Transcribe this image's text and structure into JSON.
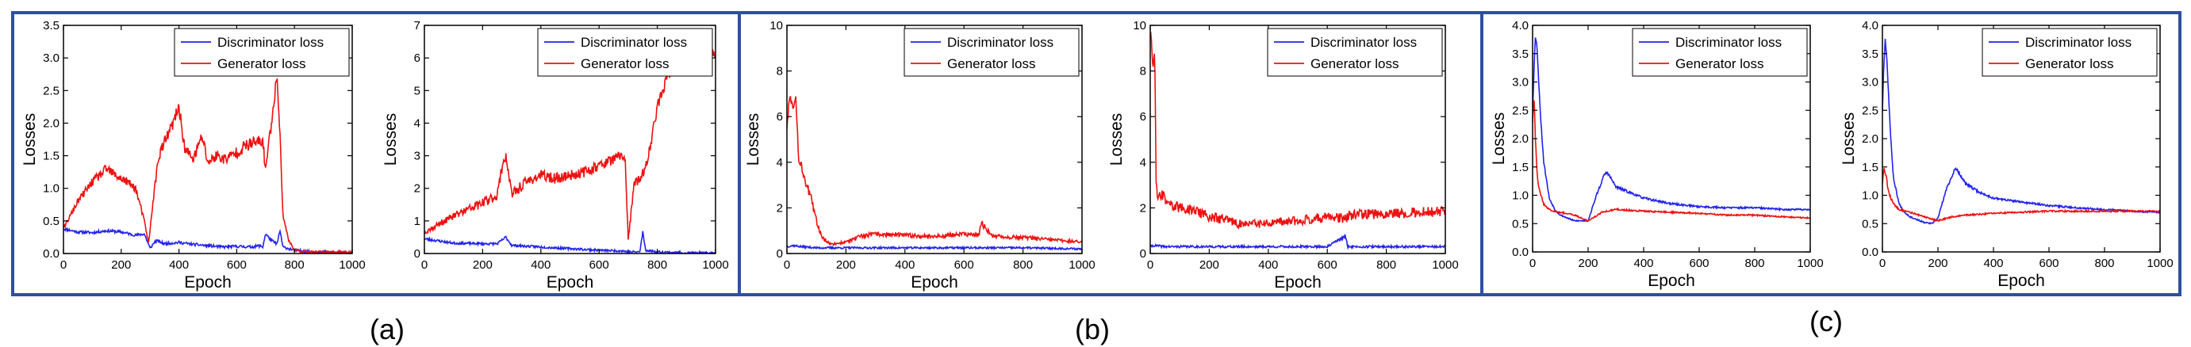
{
  "figure": {
    "colors": {
      "border": "#2f4f9f",
      "discriminator": "#2222ee",
      "generator": "#ee1111",
      "axis": "#000000"
    },
    "panel_labels": [
      "(a)",
      "(b)",
      "(c)"
    ]
  },
  "chart_data": [
    {
      "type": "line",
      "panel": "(a)",
      "title": "",
      "xlabel": "Epoch",
      "ylabel": "Losses",
      "xlim": [
        0,
        1000
      ],
      "ylim": [
        0,
        3.5
      ],
      "xticks": [
        0,
        200,
        400,
        600,
        800,
        1000
      ],
      "yticks": [
        0.0,
        0.5,
        1.0,
        1.5,
        2.0,
        2.5,
        3.0,
        3.5
      ],
      "ytick_labels": [
        "0.0",
        "0.5",
        "1.0",
        "1.5",
        "2.0",
        "2.5",
        "3.0",
        "3.5"
      ],
      "legend": "top-right",
      "noise": 0.06,
      "seed": 11,
      "series": [
        {
          "name": "Discriminator loss",
          "color": "#2222ee",
          "x": [
            0,
            50,
            100,
            150,
            200,
            250,
            280,
            300,
            320,
            350,
            400,
            450,
            500,
            550,
            600,
            650,
            680,
            690,
            700,
            720,
            740,
            750,
            760,
            800,
            850,
            900,
            1000
          ],
          "y": [
            0.38,
            0.33,
            0.32,
            0.35,
            0.33,
            0.28,
            0.3,
            0.08,
            0.2,
            0.15,
            0.17,
            0.14,
            0.12,
            0.1,
            0.11,
            0.1,
            0.12,
            0.1,
            0.3,
            0.2,
            0.15,
            0.35,
            0.1,
            0.05,
            0.03,
            0.02,
            0.01
          ]
        },
        {
          "name": "Generator loss",
          "color": "#ee1111",
          "x": [
            0,
            50,
            100,
            150,
            180,
            220,
            250,
            280,
            295,
            310,
            330,
            350,
            380,
            400,
            420,
            450,
            480,
            500,
            530,
            560,
            600,
            630,
            660,
            690,
            700,
            720,
            740,
            750,
            760,
            780,
            800,
            850,
            900,
            1000
          ],
          "y": [
            0.38,
            0.8,
            1.1,
            1.3,
            1.2,
            1.1,
            1.0,
            0.5,
            0.15,
            0.8,
            1.5,
            1.7,
            2.0,
            2.25,
            1.6,
            1.45,
            1.8,
            1.4,
            1.5,
            1.45,
            1.55,
            1.65,
            1.7,
            1.72,
            1.3,
            2.0,
            2.75,
            1.8,
            0.6,
            0.2,
            0.05,
            0.02,
            0.02,
            0.02
          ]
        }
      ]
    },
    {
      "type": "line",
      "panel": "(a)",
      "title": "",
      "xlabel": "Epoch",
      "ylabel": "Losses",
      "xlim": [
        0,
        1000
      ],
      "ylim": [
        0,
        7
      ],
      "xticks": [
        0,
        200,
        400,
        600,
        800,
        1000
      ],
      "yticks": [
        0,
        1,
        2,
        3,
        4,
        5,
        6,
        7
      ],
      "ytick_labels": [
        "0",
        "1",
        "2",
        "3",
        "4",
        "5",
        "6",
        "7"
      ],
      "legend": "top-right",
      "noise": 0.1,
      "seed": 23,
      "series": [
        {
          "name": "Discriminator loss",
          "color": "#2222ee",
          "x": [
            0,
            100,
            200,
            250,
            280,
            300,
            400,
            500,
            600,
            680,
            700,
            740,
            750,
            760,
            800,
            900,
            1000
          ],
          "y": [
            0.45,
            0.32,
            0.3,
            0.3,
            0.5,
            0.25,
            0.2,
            0.15,
            0.1,
            0.08,
            0.05,
            0.05,
            0.65,
            0.1,
            0.05,
            0.02,
            0.01
          ]
        },
        {
          "name": "Generator loss",
          "color": "#ee1111",
          "x": [
            0,
            100,
            200,
            250,
            270,
            280,
            300,
            350,
            400,
            450,
            500,
            550,
            600,
            650,
            680,
            690,
            700,
            720,
            740,
            760,
            780,
            800,
            830,
            850,
            900,
            950,
            980,
            1000
          ],
          "y": [
            0.65,
            1.15,
            1.55,
            1.8,
            2.8,
            3.0,
            1.8,
            2.2,
            2.4,
            2.3,
            2.4,
            2.5,
            2.7,
            2.9,
            3.0,
            2.9,
            0.4,
            2.1,
            2.3,
            2.6,
            3.5,
            4.5,
            5.3,
            5.6,
            5.9,
            6.0,
            6.1,
            6.15
          ]
        }
      ]
    },
    {
      "type": "line",
      "panel": "(b)",
      "title": "",
      "xlabel": "Epoch",
      "ylabel": "Losses",
      "xlim": [
        0,
        1000
      ],
      "ylim": [
        0,
        10
      ],
      "xticks": [
        0,
        200,
        400,
        600,
        800,
        1000
      ],
      "yticks": [
        0,
        2,
        4,
        6,
        8,
        10
      ],
      "ytick_labels": [
        "0",
        "2",
        "4",
        "6",
        "8",
        "10"
      ],
      "legend": "top-right",
      "noise": 0.12,
      "seed": 37,
      "series": [
        {
          "name": "Discriminator loss",
          "color": "#2222ee",
          "x": [
            0,
            20,
            50,
            100,
            200,
            400,
            600,
            800,
            1000
          ],
          "y": [
            0.3,
            0.35,
            0.3,
            0.25,
            0.25,
            0.25,
            0.25,
            0.25,
            0.2
          ]
        },
        {
          "name": "Generator loss",
          "color": "#ee1111",
          "x": [
            0,
            10,
            20,
            30,
            40,
            50,
            60,
            80,
            100,
            120,
            150,
            200,
            250,
            300,
            400,
            500,
            600,
            650,
            660,
            700,
            800,
            900,
            1000
          ],
          "y": [
            5.5,
            7.0,
            6.5,
            6.8,
            4.2,
            3.8,
            3.3,
            2.5,
            1.4,
            0.7,
            0.4,
            0.5,
            0.75,
            0.85,
            0.8,
            0.75,
            0.85,
            0.8,
            1.3,
            0.75,
            0.7,
            0.6,
            0.5
          ]
        }
      ]
    },
    {
      "type": "line",
      "panel": "(b)",
      "title": "",
      "xlabel": "Epoch",
      "ylabel": "Losses",
      "xlim": [
        0,
        1000
      ],
      "ylim": [
        0,
        10
      ],
      "xticks": [
        0,
        200,
        400,
        600,
        800,
        1000
      ],
      "yticks": [
        0,
        2,
        4,
        6,
        8,
        10
      ],
      "ytick_labels": [
        "0",
        "2",
        "4",
        "6",
        "8",
        "10"
      ],
      "legend": "top-right",
      "noise": 0.14,
      "seed": 41,
      "series": [
        {
          "name": "Discriminator loss",
          "color": "#2222ee",
          "x": [
            0,
            10,
            50,
            100,
            200,
            400,
            600,
            660,
            670,
            800,
            1000
          ],
          "y": [
            0.3,
            0.35,
            0.3,
            0.3,
            0.3,
            0.3,
            0.3,
            0.75,
            0.3,
            0.3,
            0.3
          ]
        },
        {
          "name": "Generator loss",
          "color": "#ee1111",
          "x": [
            0,
            5,
            10,
            15,
            20,
            25,
            40,
            60,
            100,
            150,
            200,
            250,
            300,
            400,
            500,
            600,
            650,
            700,
            800,
            900,
            1000
          ],
          "y": [
            9.8,
            9.0,
            8.0,
            9.0,
            3.2,
            2.5,
            2.6,
            2.2,
            2.0,
            1.9,
            1.6,
            1.5,
            1.3,
            1.3,
            1.45,
            1.6,
            1.55,
            1.7,
            1.75,
            1.8,
            1.85
          ]
        }
      ]
    },
    {
      "type": "line",
      "panel": "(c)",
      "title": "",
      "xlabel": "Epoch",
      "ylabel": "Losses",
      "xlim": [
        0,
        1000
      ],
      "ylim": [
        0,
        4
      ],
      "xticks": [
        0,
        200,
        400,
        600,
        800,
        1000
      ],
      "yticks": [
        0.0,
        0.5,
        1.0,
        1.5,
        2.0,
        2.5,
        3.0,
        3.5,
        4.0
      ],
      "ytick_labels": [
        "0.0",
        "0.5",
        "1.0",
        "1.5",
        "2.0",
        "2.5",
        "3.0",
        "3.5",
        "4.0"
      ],
      "legend": "top-right",
      "noise": 0.02,
      "seed": 53,
      "series": [
        {
          "name": "Discriminator loss",
          "color": "#2222ee",
          "x": [
            0,
            5,
            10,
            15,
            20,
            30,
            40,
            60,
            80,
            100,
            150,
            200,
            230,
            260,
            270,
            300,
            350,
            400,
            500,
            600,
            700,
            800,
            900,
            1000
          ],
          "y": [
            2.5,
            3.2,
            3.8,
            3.7,
            3.2,
            2.3,
            1.6,
            0.95,
            0.75,
            0.65,
            0.55,
            0.55,
            1.0,
            1.38,
            1.4,
            1.15,
            1.05,
            0.95,
            0.85,
            0.8,
            0.78,
            0.78,
            0.75,
            0.75
          ]
        },
        {
          "name": "Generator loss",
          "color": "#ee1111",
          "x": [
            0,
            5,
            10,
            15,
            20,
            30,
            40,
            60,
            80,
            100,
            150,
            200,
            250,
            300,
            400,
            500,
            600,
            700,
            800,
            900,
            1000
          ],
          "y": [
            2.3,
            2.8,
            2.0,
            1.5,
            1.2,
            1.0,
            0.85,
            0.75,
            0.72,
            0.7,
            0.65,
            0.55,
            0.7,
            0.75,
            0.72,
            0.7,
            0.68,
            0.65,
            0.65,
            0.62,
            0.6
          ]
        }
      ]
    },
    {
      "type": "line",
      "panel": "(c)",
      "title": "",
      "xlabel": "Epoch",
      "ylabel": "Losses",
      "xlim": [
        0,
        1000
      ],
      "ylim": [
        0,
        4
      ],
      "xticks": [
        0,
        200,
        400,
        600,
        800,
        1000
      ],
      "yticks": [
        0.0,
        0.5,
        1.0,
        1.5,
        2.0,
        2.5,
        3.0,
        3.5,
        4.0
      ],
      "ytick_labels": [
        "0.0",
        "0.5",
        "1.0",
        "1.5",
        "2.0",
        "2.5",
        "3.0",
        "3.5",
        "4.0"
      ],
      "legend": "top-right",
      "noise": 0.02,
      "seed": 67,
      "series": [
        {
          "name": "Discriminator loss",
          "color": "#2222ee",
          "x": [
            0,
            5,
            10,
            15,
            20,
            30,
            40,
            60,
            80,
            100,
            150,
            180,
            200,
            230,
            260,
            270,
            300,
            350,
            400,
            500,
            600,
            700,
            800,
            900,
            1000
          ],
          "y": [
            2.5,
            3.3,
            3.75,
            3.5,
            3.0,
            2.0,
            1.3,
            0.85,
            0.7,
            0.62,
            0.52,
            0.5,
            0.6,
            1.1,
            1.45,
            1.45,
            1.2,
            1.05,
            0.95,
            0.88,
            0.82,
            0.78,
            0.75,
            0.72,
            0.7
          ]
        },
        {
          "name": "Generator loss",
          "color": "#ee1111",
          "x": [
            0,
            5,
            10,
            15,
            20,
            30,
            40,
            60,
            80,
            100,
            150,
            200,
            250,
            300,
            400,
            500,
            600,
            700,
            800,
            900,
            1000
          ],
          "y": [
            1.2,
            1.5,
            1.4,
            1.3,
            1.1,
            0.95,
            0.85,
            0.75,
            0.72,
            0.7,
            0.62,
            0.55,
            0.62,
            0.65,
            0.68,
            0.7,
            0.72,
            0.72,
            0.72,
            0.72,
            0.72
          ]
        }
      ]
    }
  ]
}
